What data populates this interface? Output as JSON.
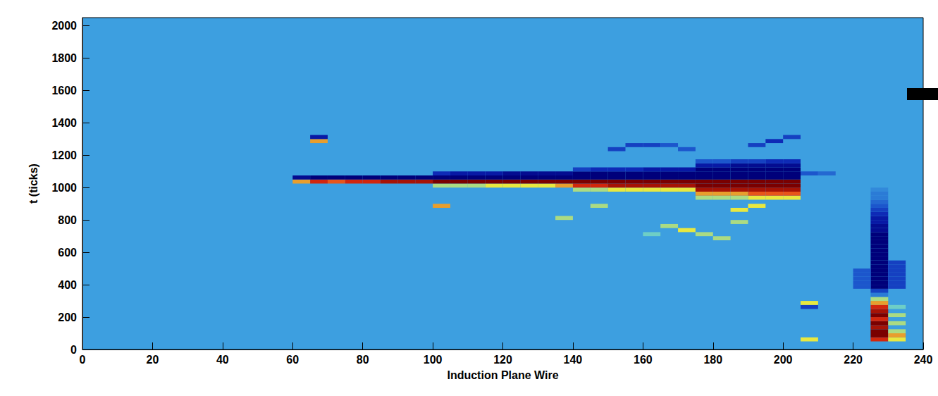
{
  "chart_data": {
    "type": "heatmap",
    "x_label": "Induction Plane Wire",
    "y_label": "t (ticks)",
    "xlim": [
      0,
      240
    ],
    "xticks": [
      0,
      20,
      40,
      60,
      80,
      100,
      120,
      140,
      160,
      180,
      200,
      220,
      240
    ],
    "ylim": [
      0,
      2050
    ],
    "yticks": [
      0,
      200,
      400,
      600,
      800,
      1000,
      1200,
      1400,
      1600,
      1800,
      2000
    ],
    "grid": false,
    "bin_size": [
      5,
      25
    ],
    "zlim": [
      -1,
      1
    ],
    "cells": [
      [
        60,
        1025,
        0.6
      ],
      [
        60,
        1050,
        -0.9
      ],
      [
        65,
        1025,
        0.8
      ],
      [
        65,
        1050,
        -1
      ],
      [
        70,
        1025,
        0.7
      ],
      [
        70,
        1050,
        -1
      ],
      [
        75,
        1025,
        0.8
      ],
      [
        75,
        1050,
        -1
      ],
      [
        80,
        1025,
        0.8
      ],
      [
        80,
        1050,
        -1
      ],
      [
        85,
        1025,
        0.9
      ],
      [
        85,
        1050,
        -1
      ],
      [
        90,
        1025,
        0.9
      ],
      [
        90,
        1050,
        -1
      ],
      [
        95,
        1025,
        0.9
      ],
      [
        95,
        1050,
        -1
      ],
      [
        100,
        1000,
        0.4
      ],
      [
        100,
        1025,
        1
      ],
      [
        100,
        1050,
        -1
      ],
      [
        100,
        1075,
        -0.7
      ],
      [
        105,
        1000,
        0.4
      ],
      [
        105,
        1025,
        1
      ],
      [
        105,
        1050,
        -1
      ],
      [
        105,
        1075,
        -0.8
      ],
      [
        110,
        1000,
        0.4
      ],
      [
        110,
        1025,
        1
      ],
      [
        110,
        1050,
        -1
      ],
      [
        110,
        1075,
        -0.8
      ],
      [
        115,
        1000,
        0.5
      ],
      [
        115,
        1025,
        1
      ],
      [
        115,
        1050,
        -1
      ],
      [
        115,
        1075,
        -0.8
      ],
      [
        120,
        1000,
        0.5
      ],
      [
        120,
        1025,
        1
      ],
      [
        120,
        1050,
        -1
      ],
      [
        120,
        1075,
        -0.9
      ],
      [
        125,
        1000,
        0.5
      ],
      [
        125,
        1025,
        1
      ],
      [
        125,
        1050,
        -1
      ],
      [
        125,
        1075,
        -0.9
      ],
      [
        130,
        1000,
        0.5
      ],
      [
        130,
        1025,
        1
      ],
      [
        130,
        1050,
        -1
      ],
      [
        130,
        1075,
        -0.9
      ],
      [
        135,
        1000,
        0.6
      ],
      [
        135,
        1025,
        1
      ],
      [
        135,
        1050,
        -1
      ],
      [
        135,
        1075,
        -0.9
      ],
      [
        140,
        975,
        0.4
      ],
      [
        140,
        1000,
        0.8
      ],
      [
        140,
        1025,
        1
      ],
      [
        140,
        1050,
        -1
      ],
      [
        140,
        1075,
        -1
      ],
      [
        140,
        1100,
        -0.6
      ],
      [
        145,
        975,
        0.4
      ],
      [
        145,
        1000,
        0.8
      ],
      [
        145,
        1025,
        1
      ],
      [
        145,
        1050,
        -1
      ],
      [
        145,
        1075,
        -1
      ],
      [
        145,
        1100,
        -0.7
      ],
      [
        150,
        975,
        0.5
      ],
      [
        150,
        1000,
        0.9
      ],
      [
        150,
        1025,
        1
      ],
      [
        150,
        1050,
        -1
      ],
      [
        150,
        1075,
        -1
      ],
      [
        150,
        1100,
        -0.7
      ],
      [
        155,
        975,
        0.5
      ],
      [
        155,
        1000,
        0.9
      ],
      [
        155,
        1025,
        1
      ],
      [
        155,
        1050,
        -1
      ],
      [
        155,
        1075,
        -1
      ],
      [
        155,
        1100,
        -0.7
      ],
      [
        160,
        975,
        0.5
      ],
      [
        160,
        1000,
        0.9
      ],
      [
        160,
        1025,
        1
      ],
      [
        160,
        1050,
        -1
      ],
      [
        160,
        1075,
        -1
      ],
      [
        160,
        1100,
        -0.8
      ],
      [
        165,
        975,
        0.5
      ],
      [
        165,
        1000,
        0.9
      ],
      [
        165,
        1025,
        1
      ],
      [
        165,
        1050,
        -1
      ],
      [
        165,
        1075,
        -1
      ],
      [
        165,
        1100,
        -0.8
      ],
      [
        170,
        975,
        0.5
      ],
      [
        170,
        1000,
        0.9
      ],
      [
        170,
        1025,
        1
      ],
      [
        170,
        1050,
        -1
      ],
      [
        170,
        1075,
        -1
      ],
      [
        170,
        1100,
        -0.8
      ],
      [
        175,
        925,
        0.4
      ],
      [
        175,
        950,
        0.6
      ],
      [
        175,
        975,
        0.9
      ],
      [
        175,
        1000,
        1
      ],
      [
        175,
        1025,
        1
      ],
      [
        175,
        1050,
        -1
      ],
      [
        175,
        1075,
        -1
      ],
      [
        175,
        1100,
        -1
      ],
      [
        175,
        1125,
        -0.8
      ],
      [
        175,
        1150,
        -0.5
      ],
      [
        180,
        925,
        0.4
      ],
      [
        180,
        950,
        0.6
      ],
      [
        180,
        975,
        0.9
      ],
      [
        180,
        1000,
        1
      ],
      [
        180,
        1025,
        1
      ],
      [
        180,
        1050,
        -1
      ],
      [
        180,
        1075,
        -1
      ],
      [
        180,
        1100,
        -1
      ],
      [
        180,
        1125,
        -0.8
      ],
      [
        180,
        1150,
        -0.5
      ],
      [
        185,
        925,
        0.4
      ],
      [
        185,
        950,
        0.6
      ],
      [
        185,
        975,
        0.9
      ],
      [
        185,
        1000,
        1
      ],
      [
        185,
        1025,
        1
      ],
      [
        185,
        1050,
        -1
      ],
      [
        185,
        1075,
        -1
      ],
      [
        185,
        1100,
        -1
      ],
      [
        185,
        1125,
        -0.9
      ],
      [
        185,
        1150,
        -0.6
      ],
      [
        190,
        925,
        0.5
      ],
      [
        190,
        950,
        0.7
      ],
      [
        190,
        975,
        0.9
      ],
      [
        190,
        1000,
        1
      ],
      [
        190,
        1025,
        1
      ],
      [
        190,
        1050,
        -1
      ],
      [
        190,
        1075,
        -1
      ],
      [
        190,
        1100,
        -1
      ],
      [
        190,
        1125,
        -0.9
      ],
      [
        190,
        1150,
        -0.6
      ],
      [
        195,
        925,
        0.5
      ],
      [
        195,
        950,
        0.7
      ],
      [
        195,
        975,
        0.9
      ],
      [
        195,
        1000,
        1
      ],
      [
        195,
        1025,
        1
      ],
      [
        195,
        1050,
        -1
      ],
      [
        195,
        1075,
        -1
      ],
      [
        195,
        1100,
        -1
      ],
      [
        195,
        1125,
        -0.9
      ],
      [
        195,
        1150,
        -0.7
      ],
      [
        200,
        925,
        0.5
      ],
      [
        200,
        950,
        0.7
      ],
      [
        200,
        975,
        0.9
      ],
      [
        200,
        1000,
        1
      ],
      [
        200,
        1025,
        1
      ],
      [
        200,
        1050,
        -1
      ],
      [
        200,
        1075,
        -1
      ],
      [
        200,
        1100,
        -1
      ],
      [
        200,
        1125,
        -0.9
      ],
      [
        200,
        1150,
        -0.7
      ],
      [
        205,
        1075,
        -0.5
      ],
      [
        210,
        1075,
        -0.4
      ],
      [
        65,
        1275,
        0.6
      ],
      [
        65,
        1300,
        -0.8
      ],
      [
        100,
        875,
        0.6
      ],
      [
        135,
        800,
        0.4
      ],
      [
        150,
        1225,
        -0.6
      ],
      [
        155,
        1250,
        -0.6
      ],
      [
        160,
        1250,
        -0.6
      ],
      [
        165,
        1250,
        -0.5
      ],
      [
        170,
        1225,
        -0.5
      ],
      [
        190,
        1250,
        -0.6
      ],
      [
        195,
        1275,
        -0.7
      ],
      [
        200,
        1300,
        -0.6
      ],
      [
        145,
        875,
        0.4
      ],
      [
        160,
        700,
        0.3
      ],
      [
        165,
        750,
        0.4
      ],
      [
        170,
        725,
        0.5
      ],
      [
        175,
        700,
        0.4
      ],
      [
        180,
        675,
        0.4
      ],
      [
        185,
        775,
        0.4
      ],
      [
        185,
        850,
        0.5
      ],
      [
        190,
        875,
        0.5
      ],
      [
        205,
        50,
        0.5
      ],
      [
        205,
        250,
        -0.6
      ],
      [
        205,
        275,
        0.5
      ],
      [
        225,
        50,
        0.8
      ],
      [
        225,
        75,
        1
      ],
      [
        225,
        100,
        1
      ],
      [
        225,
        125,
        0.9
      ],
      [
        225,
        150,
        1
      ],
      [
        225,
        175,
        0.8
      ],
      [
        225,
        200,
        1
      ],
      [
        225,
        225,
        0.9
      ],
      [
        225,
        250,
        0.8
      ],
      [
        225,
        275,
        0.6
      ],
      [
        225,
        300,
        0.4
      ],
      [
        225,
        325,
        -0.3
      ],
      [
        225,
        350,
        -0.6
      ],
      [
        225,
        375,
        -1
      ],
      [
        225,
        400,
        -1
      ],
      [
        225,
        425,
        -1
      ],
      [
        225,
        450,
        -1
      ],
      [
        225,
        475,
        -1
      ],
      [
        225,
        500,
        -1
      ],
      [
        225,
        525,
        -1
      ],
      [
        225,
        550,
        -1
      ],
      [
        225,
        575,
        -1
      ],
      [
        225,
        600,
        -1
      ],
      [
        225,
        625,
        -1
      ],
      [
        225,
        650,
        -1
      ],
      [
        225,
        675,
        -1
      ],
      [
        225,
        700,
        -1
      ],
      [
        225,
        725,
        -0.9
      ],
      [
        225,
        750,
        -0.9
      ],
      [
        225,
        775,
        -0.8
      ],
      [
        225,
        800,
        -0.8
      ],
      [
        225,
        825,
        -0.7
      ],
      [
        225,
        850,
        -0.6
      ],
      [
        225,
        875,
        -0.5
      ],
      [
        225,
        900,
        -0.4
      ],
      [
        225,
        925,
        -0.3
      ],
      [
        225,
        950,
        -0.3
      ],
      [
        225,
        975,
        -0.2
      ],
      [
        230,
        50,
        0.5
      ],
      [
        230,
        75,
        0.6
      ],
      [
        230,
        100,
        0.4
      ],
      [
        230,
        150,
        0.4
      ],
      [
        230,
        200,
        0.4
      ],
      [
        230,
        250,
        0.3
      ],
      [
        230,
        375,
        -0.6
      ],
      [
        230,
        400,
        -0.6
      ],
      [
        230,
        425,
        -0.6
      ],
      [
        230,
        450,
        -0.6
      ],
      [
        230,
        475,
        -0.6
      ],
      [
        230,
        500,
        -0.6
      ],
      [
        230,
        525,
        -0.6
      ],
      [
        220,
        375,
        -0.5
      ],
      [
        220,
        400,
        -0.5
      ],
      [
        220,
        425,
        -0.5
      ],
      [
        220,
        450,
        -0.5
      ],
      [
        220,
        475,
        -0.5
      ]
    ]
  }
}
